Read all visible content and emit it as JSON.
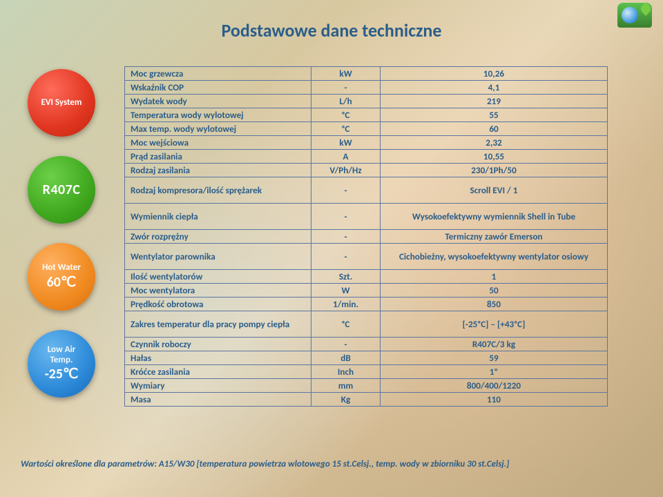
{
  "title": "Podstawowe dane techniczne",
  "circles": [
    {
      "color": "c-red",
      "l1": "EVI System",
      "l2": "",
      "l1cls": "c-small",
      "l2cls": ""
    },
    {
      "color": "c-green",
      "l1": "R407C",
      "l2": "",
      "l1cls": "c-big",
      "l2cls": ""
    },
    {
      "color": "c-orange",
      "l1": "Hot Water",
      "l2": "60℃",
      "l1cls": "c-small",
      "l2cls": "c-line2"
    },
    {
      "color": "c-blue",
      "l1": "Low Air\nTemp.",
      "l2": "-25℃",
      "l1cls": "c-lowair",
      "l2cls": "c-line2"
    }
  ],
  "rows": [
    {
      "p": "Moc grzewcza",
      "u": "kW",
      "v": "10,26"
    },
    {
      "p": "Wskaźnik COP",
      "u": "-",
      "v": "4,1"
    },
    {
      "p": "Wydatek wody",
      "u": "L/h",
      "v": "219"
    },
    {
      "p": "Temperatura wody wylotowej",
      "u": "ᵒC",
      "v": "55"
    },
    {
      "p": "Max temp. wody wylotowej",
      "u": "ᵒC",
      "v": "60"
    },
    {
      "p": "Moc wejściowa",
      "u": "kW",
      "v": "2,32"
    },
    {
      "p": "Prąd zasilania",
      "u": "A",
      "v": "10,55"
    },
    {
      "p": "Rodzaj zasilania",
      "u": "V/Ph/Hz",
      "v": "230/1Ph/50"
    },
    {
      "p": "Rodzaj kompresora/ilość sprężarek",
      "u": "-",
      "v": "Scroll EVI / 1",
      "twoline": true
    },
    {
      "p": "Wymiennik ciepła",
      "u": "-",
      "v": "Wysokoefektywny wymiennik Shell in Tube",
      "twoline": true
    },
    {
      "p": "Zwór rozprężny",
      "u": "-",
      "v": "Termiczny zawór Emerson"
    },
    {
      "p": "Wentylator parownika",
      "u": "-",
      "v": "Cichobieżny, wysokoefektywny wentylator osiowy",
      "twoline": true
    },
    {
      "p": "Ilość wentylatorów",
      "u": "Szt.",
      "v": "1"
    },
    {
      "p": "Moc wentylatora",
      "u": "W",
      "v": "50"
    },
    {
      "p": "Prędkość obrotowa",
      "u": "1/min.",
      "v": "850"
    },
    {
      "p": "Zakres temperatur dla pracy pompy ciepła",
      "u": "ᵒC",
      "v": "[-25ᵒC] – [+43ᵒC]",
      "twoline": true
    },
    {
      "p": "Czynnik roboczy",
      "u": "-",
      "v": "R407C/3 kg"
    },
    {
      "p": "Hałas",
      "u": "dB",
      "v": "59"
    },
    {
      "p": "Króćce zasilania",
      "u": "Inch",
      "v": "1\""
    },
    {
      "p": "Wymiary",
      "u": "mm",
      "v": "800/400/1220"
    },
    {
      "p": "Masa",
      "u": "Kg",
      "v": "110"
    }
  ],
  "footnote": "Wartości określone dla parametrów: A15/W30 [temperatura powietrza wlotowego 15 st.Celsj., temp. wody w zbiorniku 30 st.Celsj.]",
  "style": {
    "text_color": "#2b5d8a",
    "border_color": "#5a75a0",
    "title_fontsize": 26,
    "cell_fontsize": 13.2,
    "footnote_fontsize": 13,
    "colors": {
      "red": "#e03520",
      "green": "#3fa81e",
      "orange": "#f08a20",
      "blue": "#2c8ad8"
    }
  }
}
